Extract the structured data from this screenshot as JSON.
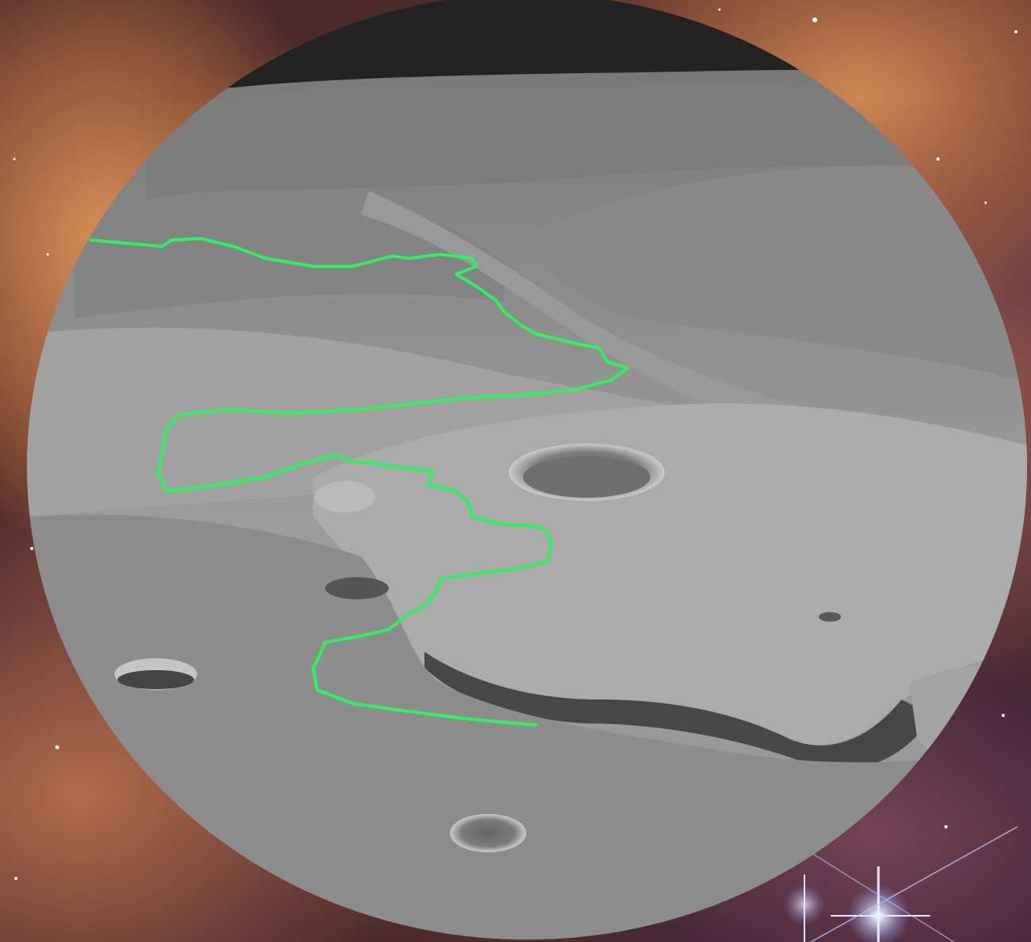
{
  "scene": {
    "background": "nebula-starfield",
    "subject": "mars-crater-delta-terrain",
    "route_color": "#2ff060",
    "sky_color": "#121212"
  }
}
